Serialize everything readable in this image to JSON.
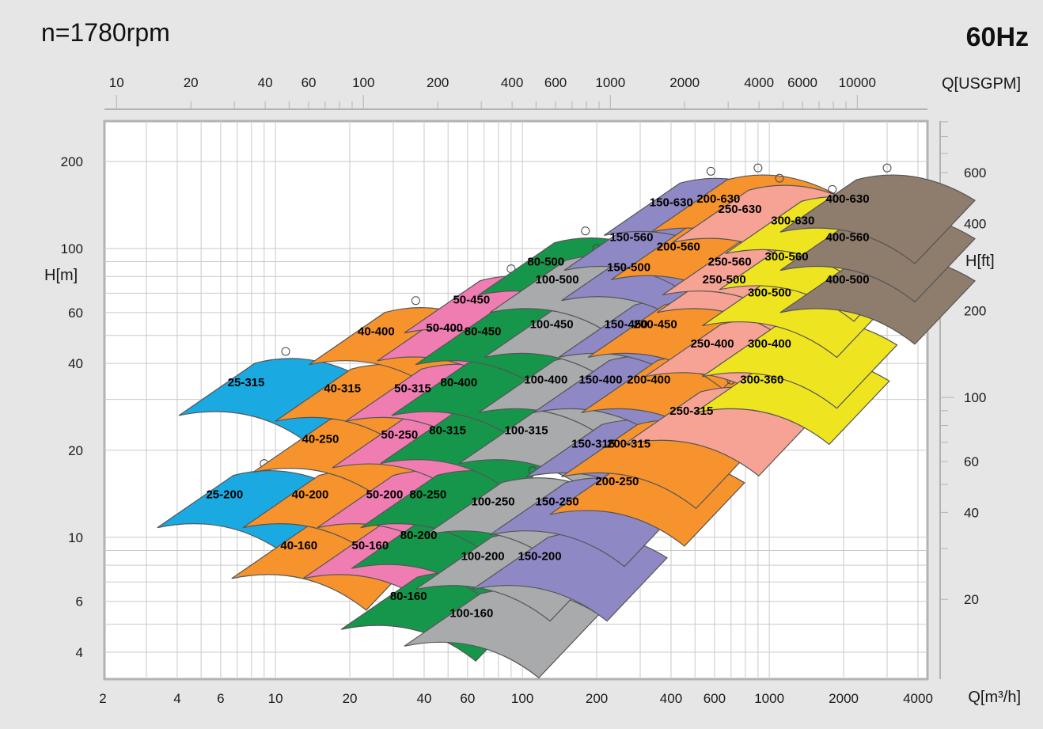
{
  "chart_data": {
    "type": "pump-selection-chart",
    "speed_label": "n=1780rpm",
    "frequency_label": "60Hz",
    "x_axis": {
      "label": "Q[m³/h]",
      "scale": "log",
      "range": [
        2,
        5000
      ],
      "ticks": [
        2,
        4,
        6,
        10,
        20,
        40,
        60,
        100,
        200,
        400,
        600,
        1000,
        2000,
        4000
      ]
    },
    "x2_axis": {
      "label": "Q[USGPM]",
      "scale": "log",
      "ticks": [
        10,
        20,
        40,
        60,
        100,
        200,
        400,
        600,
        1000,
        2000,
        4000,
        6000,
        10000
      ]
    },
    "y_axis": {
      "label": "H[m]",
      "scale": "log",
      "range": [
        3.3,
        300
      ],
      "ticks": [
        4,
        6,
        10,
        20,
        40,
        60,
        100,
        200
      ]
    },
    "y2_axis": {
      "label": "H[ft]",
      "scale": "log",
      "ticks": [
        20,
        40,
        60,
        100,
        200,
        400,
        600
      ]
    },
    "grid": true,
    "colors": {
      "blue": "#1ba9e1",
      "orange": "#f7932d",
      "pink": "#f07db2",
      "green": "#16964a",
      "gray": "#a8aaac",
      "purple": "#8e88c4",
      "salmon": "#f6a294",
      "yellow": "#eee41f",
      "brown": "#8e7c6d"
    },
    "pump_fields": [
      {
        "name": "25-315",
        "color": "blue",
        "q_bep": 11,
        "h_bep": 44
      },
      {
        "name": "25-200",
        "color": "blue",
        "q_bep": 9,
        "h_bep": 18
      },
      {
        "name": "40-400",
        "color": "orange",
        "q_bep": 37,
        "h_bep": 66
      },
      {
        "name": "40-315",
        "color": "orange",
        "q_bep": 27,
        "h_bep": 42
      },
      {
        "name": "40-250",
        "color": "orange",
        "q_bep": 22,
        "h_bep": 28
      },
      {
        "name": "40-200",
        "color": "orange",
        "q_bep": 20,
        "h_bep": 18
      },
      {
        "name": "40-160",
        "color": "orange",
        "q_bep": 18,
        "h_bep": 12
      },
      {
        "name": "50-450",
        "color": "pink",
        "q_bep": 90,
        "h_bep": 85
      },
      {
        "name": "50-400",
        "color": "pink",
        "q_bep": 70,
        "h_bep": 68
      },
      {
        "name": "50-315",
        "color": "pink",
        "q_bep": 52,
        "h_bep": 42
      },
      {
        "name": "50-250",
        "color": "pink",
        "q_bep": 46,
        "h_bep": 29
      },
      {
        "name": "50-200",
        "color": "pink",
        "q_bep": 40,
        "h_bep": 18
      },
      {
        "name": "50-160",
        "color": "pink",
        "q_bep": 35,
        "h_bep": 12
      },
      {
        "name": "80-500",
        "color": "green",
        "q_bep": 180,
        "h_bep": 115
      },
      {
        "name": "80-450",
        "color": "green",
        "q_bep": 100,
        "h_bep": 66
      },
      {
        "name": "80-400",
        "color": "green",
        "q_bep": 80,
        "h_bep": 44
      },
      {
        "name": "80-315",
        "color": "green",
        "q_bep": 72,
        "h_bep": 30
      },
      {
        "name": "80-250",
        "color": "green",
        "q_bep": 60,
        "h_bep": 18
      },
      {
        "name": "80-200",
        "color": "green",
        "q_bep": 55,
        "h_bep": 13
      },
      {
        "name": "80-160",
        "color": "green",
        "q_bep": 50,
        "h_bep": 8
      },
      {
        "name": "100-500",
        "color": "gray",
        "q_bep": 200,
        "h_bep": 100
      },
      {
        "name": "100-450",
        "color": "gray",
        "q_bep": 190,
        "h_bep": 70
      },
      {
        "name": "100-400",
        "color": "gray",
        "q_bep": 180,
        "h_bep": 45
      },
      {
        "name": "100-315",
        "color": "gray",
        "q_bep": 150,
        "h_bep": 30
      },
      {
        "name": "100-250",
        "color": "gray",
        "q_bep": 110,
        "h_bep": 17
      },
      {
        "name": "100-200",
        "color": "gray",
        "q_bep": 100,
        "h_bep": 11
      },
      {
        "name": "100-160",
        "color": "gray",
        "q_bep": 90,
        "h_bep": 7
      },
      {
        "name": "150-630",
        "color": "purple",
        "q_bep": 580,
        "h_bep": 185
      },
      {
        "name": "150-560",
        "color": "purple",
        "q_bep": 400,
        "h_bep": 140
      },
      {
        "name": "150-500",
        "color": "purple",
        "q_bep": 390,
        "h_bep": 110
      },
      {
        "name": "150-450",
        "color": "purple",
        "q_bep": 380,
        "h_bep": 70
      },
      {
        "name": "150-400",
        "color": "purple",
        "q_bep": 300,
        "h_bep": 45
      },
      {
        "name": "150-315",
        "color": "purple",
        "q_bep": 280,
        "h_bep": 27
      },
      {
        "name": "150-250",
        "color": "purple",
        "q_bep": 200,
        "h_bep": 17
      },
      {
        "name": "150-200",
        "color": "purple",
        "q_bep": 170,
        "h_bep": 11
      },
      {
        "name": "200-630",
        "color": "orange",
        "q_bep": 900,
        "h_bep": 190
      },
      {
        "name": "200-560",
        "color": "orange",
        "q_bep": 620,
        "h_bep": 130
      },
      {
        "name": "200-450",
        "color": "orange",
        "q_bep": 500,
        "h_bep": 70
      },
      {
        "name": "200-400",
        "color": "orange",
        "q_bep": 470,
        "h_bep": 45
      },
      {
        "name": "200-315",
        "color": "orange",
        "q_bep": 390,
        "h_bep": 27
      },
      {
        "name": "200-250",
        "color": "orange",
        "q_bep": 350,
        "h_bep": 20
      },
      {
        "name": "250-630",
        "color": "salmon",
        "q_bep": 1100,
        "h_bep": 175
      },
      {
        "name": "250-560",
        "color": "salmon",
        "q_bep": 1000,
        "h_bep": 115
      },
      {
        "name": "250-500",
        "color": "salmon",
        "q_bep": 950,
        "h_bep": 100
      },
      {
        "name": "250-400",
        "color": "salmon",
        "q_bep": 850,
        "h_bep": 60
      },
      {
        "name": "250-315",
        "color": "salmon",
        "q_bep": 700,
        "h_bep": 35
      },
      {
        "name": "300-630",
        "color": "yellow",
        "q_bep": 1800,
        "h_bep": 160
      },
      {
        "name": "300-560",
        "color": "yellow",
        "q_bep": 1700,
        "h_bep": 120
      },
      {
        "name": "300-500",
        "color": "yellow",
        "q_bep": 1450,
        "h_bep": 90
      },
      {
        "name": "300-400",
        "color": "yellow",
        "q_bep": 1450,
        "h_bep": 60
      },
      {
        "name": "300-360",
        "color": "yellow",
        "q_bep": 1350,
        "h_bep": 45
      },
      {
        "name": "400-630",
        "color": "brown",
        "q_bep": 3000,
        "h_bep": 190
      },
      {
        "name": "400-560",
        "color": "brown",
        "q_bep": 3000,
        "h_bep": 140
      },
      {
        "name": "400-500",
        "color": "brown",
        "q_bep": 3000,
        "h_bep": 100
      }
    ]
  }
}
